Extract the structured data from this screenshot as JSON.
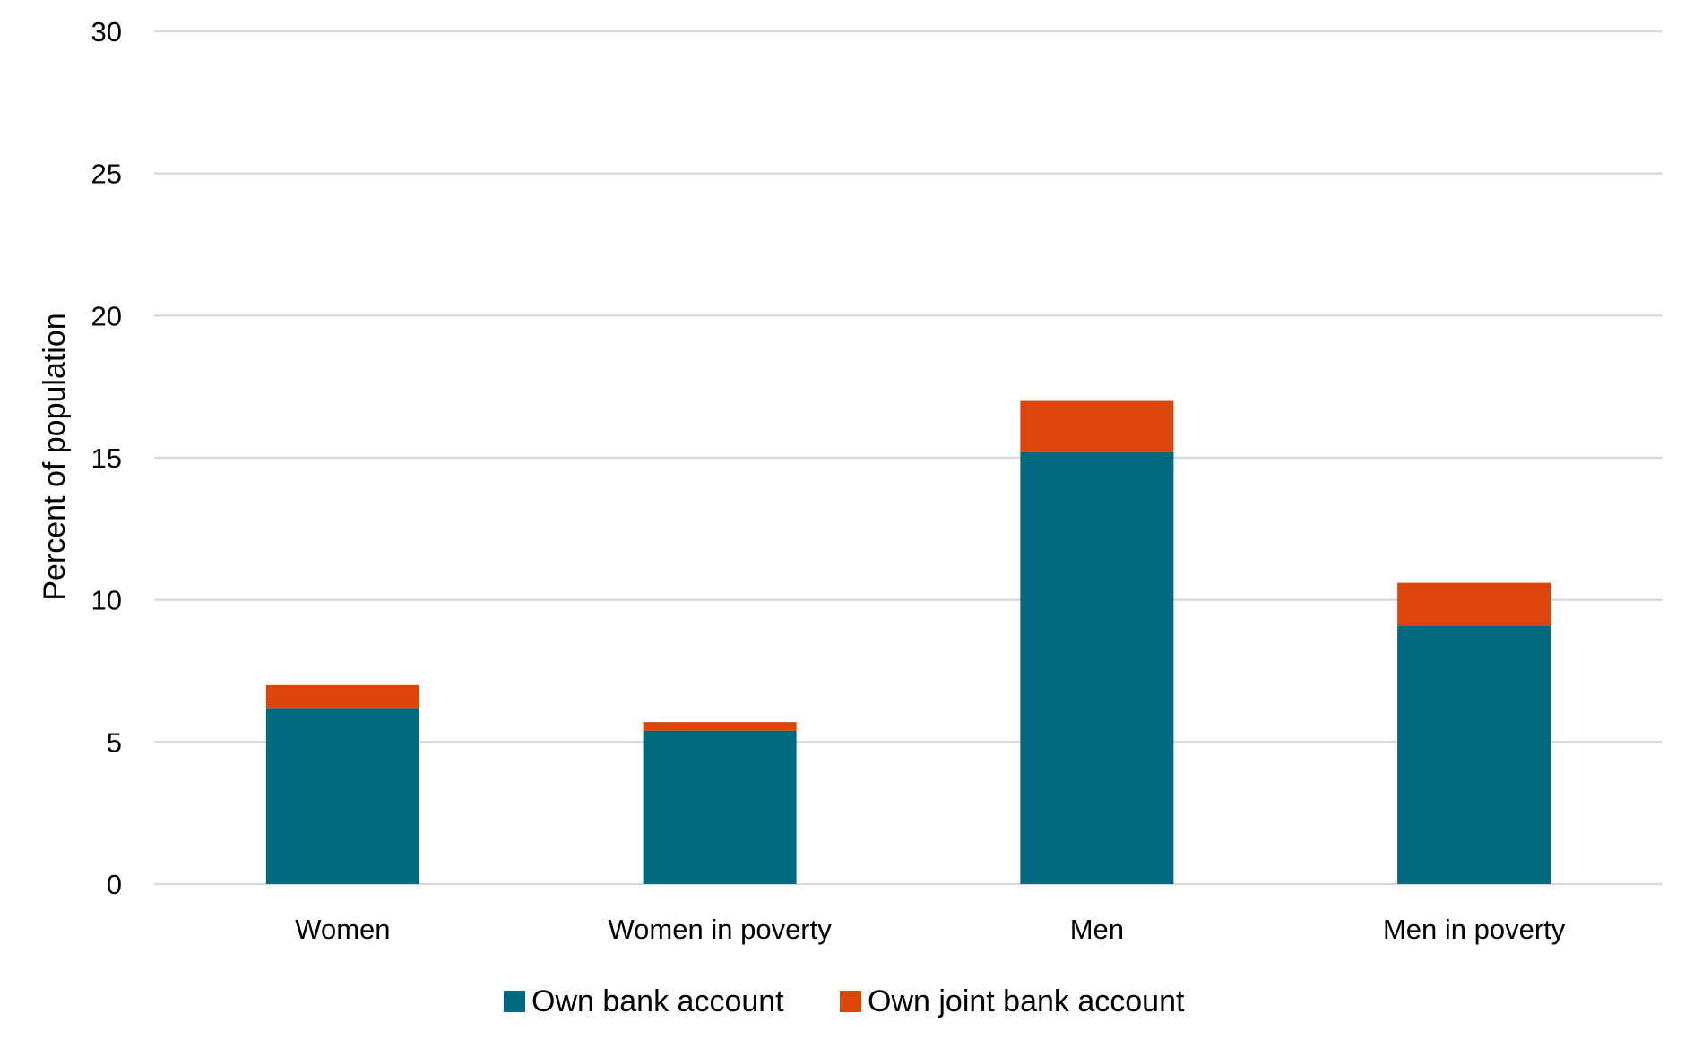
{
  "chart_data": {
    "type": "bar",
    "stacked": true,
    "categories": [
      "Women",
      "Women in poverty",
      "Men",
      "Men in poverty"
    ],
    "series": [
      {
        "name": "Own bank account",
        "values": [
          6.2,
          5.4,
          15.2,
          9.1
        ],
        "color": "#006a80"
      },
      {
        "name": "Own joint bank account",
        "values": [
          0.8,
          0.3,
          1.8,
          1.5
        ],
        "color": "#dc460b"
      }
    ],
    "title": "",
    "xlabel": "",
    "ylabel": "Percent of population",
    "ylim": [
      0,
      30
    ],
    "yticks": [
      0,
      5,
      10,
      15,
      20,
      25,
      30
    ],
    "grid": true,
    "legend": "bottom-center"
  }
}
